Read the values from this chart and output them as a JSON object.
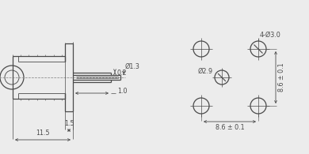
{
  "bg_color": "#ececec",
  "line_color": "#4a4a4a",
  "dim_color": "#4a4a4a",
  "lw": 0.9,
  "annotations": {
    "dim_11_5": "11.5",
    "dim_1_5": "1.5",
    "dim_1_0": "1.0",
    "dim_0_2": "0.2",
    "dim_phi_1_3": "Ø1.3",
    "dim_4_phi_3": "4-Ø3.0",
    "dim_phi_2_9": "Ø2.9",
    "dim_8_6_h": "8.6 ± 0.1",
    "dim_8_6_v": "8.6 ± 0.1"
  },
  "fs": 5.8
}
